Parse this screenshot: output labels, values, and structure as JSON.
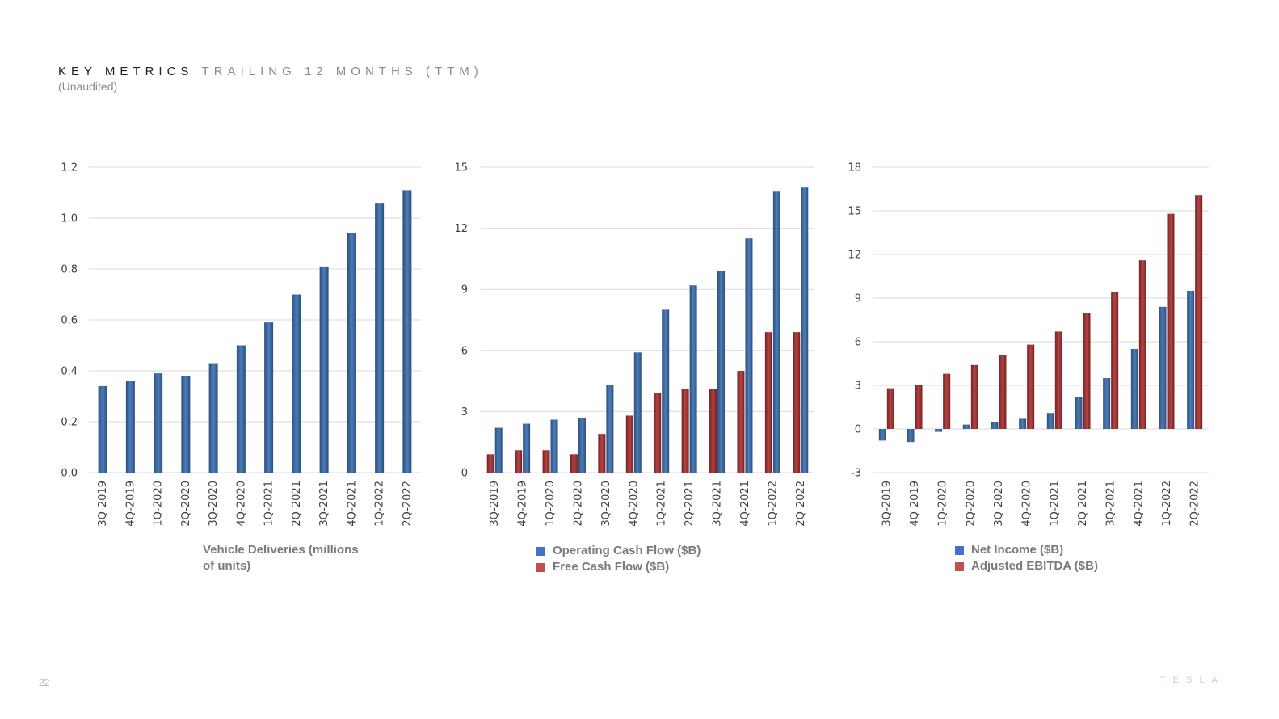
{
  "header": {
    "title_strong": "KEY METRICS",
    "title_light": "TRAILING 12 MONTHS (TTM)",
    "subtitle": "(Unaudited)"
  },
  "footer": {
    "page_number": "22",
    "logo_text": "TESLA"
  },
  "colors": {
    "blue_dark": "#2c4f7e",
    "blue_light": "#4b7db9",
    "red_dark": "#7a1f1f",
    "red_light": "#b04545",
    "legend_blue": "#4472c4",
    "legend_red": "#c0504d",
    "grid": "#d9d9d9",
    "axis_text": "#404040"
  },
  "chart_data": [
    {
      "type": "bar",
      "categories": [
        "3Q-2019",
        "4Q-2019",
        "1Q-2020",
        "2Q-2020",
        "3Q-2020",
        "4Q-2020",
        "1Q-2021",
        "2Q-2021",
        "3Q-2021",
        "4Q-2021",
        "1Q-2022",
        "2Q-2022"
      ],
      "series": [
        {
          "name": "Vehicle Deliveries (millions of units)",
          "values": [
            0.34,
            0.36,
            0.39,
            0.38,
            0.43,
            0.5,
            0.59,
            0.7,
            0.81,
            0.94,
            1.06,
            1.11
          ]
        }
      ],
      "yticks": [
        "0.0",
        "0.2",
        "0.4",
        "0.6",
        "0.8",
        "1.0",
        "1.2"
      ],
      "ylim": [
        0,
        1.2
      ],
      "grid": true,
      "legend": {
        "text": "Vehicle Deliveries (millions of units)",
        "line1": "Vehicle Deliveries (millions",
        "line2": "of units)"
      }
    },
    {
      "type": "bar",
      "categories": [
        "3Q-2019",
        "4Q-2019",
        "1Q-2020",
        "2Q-2020",
        "3Q-2020",
        "4Q-2020",
        "1Q-2021",
        "2Q-2021",
        "3Q-2021",
        "4Q-2021",
        "1Q-2022",
        "2Q-2022"
      ],
      "series": [
        {
          "name": "Operating Cash Flow ($B)",
          "values": [
            2.2,
            2.4,
            2.6,
            2.7,
            4.3,
            5.9,
            8.0,
            9.2,
            9.9,
            11.5,
            13.8,
            14.0
          ]
        },
        {
          "name": "Free Cash Flow ($B)",
          "values": [
            0.9,
            1.1,
            1.1,
            0.9,
            1.9,
            2.8,
            3.9,
            4.1,
            4.1,
            5.0,
            6.9,
            6.9
          ]
        }
      ],
      "yticks": [
        "0",
        "3",
        "6",
        "9",
        "12",
        "15"
      ],
      "ylim": [
        0,
        15
      ],
      "grid": true,
      "legend": {
        "items": [
          "Operating Cash Flow ($B)",
          "Free Cash Flow ($B)"
        ]
      }
    },
    {
      "type": "bar",
      "categories": [
        "3Q-2019",
        "4Q-2019",
        "1Q-2020",
        "2Q-2020",
        "3Q-2020",
        "4Q-2020",
        "1Q-2021",
        "2Q-2021",
        "3Q-2021",
        "4Q-2021",
        "1Q-2022",
        "2Q-2022"
      ],
      "series": [
        {
          "name": "Net Income ($B)",
          "values": [
            -0.8,
            -0.9,
            -0.2,
            0.3,
            0.5,
            0.7,
            1.1,
            2.2,
            3.5,
            5.5,
            8.4,
            9.5
          ]
        },
        {
          "name": "Adjusted EBITDA ($B)",
          "values": [
            2.8,
            3.0,
            3.8,
            4.4,
            5.1,
            5.8,
            6.7,
            8.0,
            9.4,
            11.6,
            14.8,
            16.1
          ]
        }
      ],
      "yticks": [
        "-3",
        "0",
        "3",
        "6",
        "9",
        "12",
        "15",
        "18"
      ],
      "ylim": [
        -3,
        18
      ],
      "grid": true,
      "legend": {
        "items": [
          "Net Income ($B)",
          "Adjusted EBITDA ($B)"
        ]
      }
    }
  ]
}
